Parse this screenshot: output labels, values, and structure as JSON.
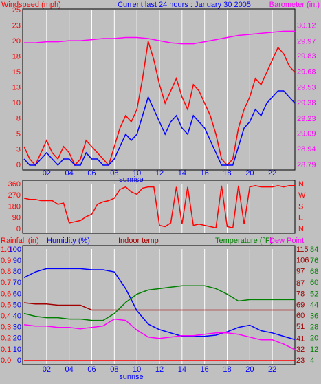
{
  "chart_data": [
    {
      "type": "line",
      "title": "Current last 24 hours : January 30 2005",
      "ylabel": "Windspeed (mph)",
      "y2label": "Barometer (in.)",
      "annotations": [
        {
          "text": "sunrise",
          "x": 9.5
        }
      ],
      "x": [
        0,
        0.5,
        1,
        1.5,
        2,
        2.5,
        3,
        3.5,
        4,
        4.5,
        5,
        5.5,
        6,
        6.5,
        7,
        7.5,
        8,
        8.5,
        9,
        9.5,
        10,
        10.5,
        11,
        11.5,
        12,
        12.5,
        13,
        13.5,
        14,
        14.5,
        15,
        15.5,
        16,
        16.5,
        17,
        17.5,
        18,
        18.5,
        19,
        19.5,
        20,
        20.5,
        21,
        21.5,
        22,
        22.5,
        23,
        23.5,
        24
      ],
      "xlim": [
        0,
        24
      ],
      "xticks": [
        {
          "value": 2,
          "label": "02"
        },
        {
          "value": 4,
          "label": "04"
        },
        {
          "value": 6,
          "label": "06"
        },
        {
          "value": 8,
          "label": "08"
        },
        {
          "value": 10,
          "label": "10"
        },
        {
          "value": 12,
          "label": "12"
        },
        {
          "value": 14,
          "label": "14"
        },
        {
          "value": 16,
          "label": "16"
        },
        {
          "value": 18,
          "label": "18"
        },
        {
          "value": 20,
          "label": "20"
        },
        {
          "value": 22,
          "label": "22"
        }
      ],
      "ylim": [
        0,
        25
      ],
      "yticks": [
        0,
        {
          "value": 2.5,
          "label": "3"
        },
        5,
        {
          "value": 7.5,
          "label": "8"
        },
        10,
        {
          "value": 12.5,
          "label": "13"
        },
        15,
        {
          "value": 17.5,
          "label": "18"
        },
        20,
        {
          "value": 22.5,
          "label": "23"
        },
        25
      ],
      "y2lim": [
        28.79,
        30.27
      ],
      "y2ticks": [
        28.79,
        28.94,
        29.09,
        29.23,
        29.38,
        29.53,
        29.68,
        29.83,
        29.97,
        30.12
      ],
      "grid": "x",
      "series": [
        {
          "color": "#ff0000",
          "values": [
            3,
            1,
            0,
            2,
            4,
            2,
            1,
            3,
            2,
            0,
            1,
            4,
            3,
            2,
            1,
            0,
            3,
            6,
            8,
            7,
            9,
            14,
            20,
            17,
            13,
            10,
            12,
            14,
            11,
            9,
            13,
            12,
            10,
            8,
            5,
            1,
            0,
            1,
            6,
            9,
            11,
            14,
            13,
            15,
            17,
            19,
            18,
            16,
            15
          ]
        },
        {
          "color": "#0000ff",
          "values": [
            1,
            0,
            0,
            1,
            2,
            1,
            0,
            1,
            1,
            0,
            0,
            2,
            1,
            1,
            0,
            0,
            1,
            3,
            5,
            4,
            5,
            8,
            11,
            9,
            7,
            5,
            7,
            8,
            6,
            5,
            8,
            7,
            6,
            4,
            2,
            0,
            0,
            0,
            3,
            6,
            7,
            9,
            8,
            10,
            11,
            12,
            12,
            11,
            10
          ]
        },
        {
          "color": "#ff00ff",
          "axis": "y2",
          "x": [
            0,
            1,
            2,
            3,
            4,
            5,
            6,
            7,
            8,
            9,
            10,
            11,
            12,
            13,
            14,
            15,
            16,
            17,
            18,
            19,
            20,
            21,
            22,
            23,
            24
          ],
          "values": [
            29.96,
            29.96,
            29.97,
            29.97,
            29.98,
            29.98,
            29.99,
            30.0,
            30.0,
            30.01,
            30.01,
            30.0,
            29.98,
            29.96,
            29.95,
            29.95,
            29.97,
            29.99,
            30.01,
            30.03,
            30.04,
            30.05,
            30.06,
            30.07,
            30.07
          ]
        }
      ]
    },
    {
      "type": "line",
      "x": [
        0,
        0.5,
        1,
        1.5,
        2,
        2.5,
        3,
        3.5,
        4,
        4.5,
        5,
        5.5,
        6,
        6.5,
        7,
        7.5,
        8,
        8.5,
        9,
        9.5,
        10,
        10.5,
        11,
        11.5,
        12,
        12.5,
        13,
        13.5,
        14,
        14.5,
        15,
        15.5,
        16,
        16.5,
        17,
        17.5,
        18,
        18.5,
        19,
        19.5,
        20,
        20.5,
        21,
        21.5,
        22,
        22.5,
        23,
        23.5,
        24
      ],
      "xlim": [
        0,
        24
      ],
      "xticks": [
        2,
        4,
        6,
        8,
        10,
        12,
        14,
        16,
        18,
        20,
        22
      ],
      "show_xtick_labels": false,
      "ylim": [
        0,
        360
      ],
      "yticks": [
        0,
        90,
        180,
        270,
        360
      ],
      "y_right_labels": [
        "N",
        "E",
        "S",
        "W",
        "N"
      ],
      "grid": "x",
      "series": [
        {
          "color": "#ff0000",
          "values": [
            250,
            240,
            240,
            230,
            230,
            230,
            200,
            210,
            50,
            60,
            70,
            100,
            120,
            200,
            220,
            230,
            250,
            320,
            340,
            300,
            280,
            330,
            340,
            340,
            30,
            20,
            50,
            340,
            40,
            340,
            30,
            40,
            30,
            20,
            10,
            350,
            20,
            10,
            350,
            40,
            340,
            350,
            340,
            340,
            340,
            350,
            340,
            350,
            350
          ]
        }
      ]
    },
    {
      "type": "line",
      "annotations": [
        {
          "text": "sunrise",
          "x": 9.5
        }
      ],
      "x": [
        0,
        1,
        2,
        3,
        4,
        5,
        6,
        7,
        8,
        9,
        10,
        11,
        12,
        13,
        14,
        15,
        16,
        17,
        18,
        19,
        20,
        21,
        22,
        23,
        24
      ],
      "xlim": [
        0,
        24
      ],
      "xticks": [
        {
          "value": 2,
          "label": "02"
        },
        {
          "value": 4,
          "label": "04"
        },
        {
          "value": 6,
          "label": "06"
        },
        {
          "value": 8,
          "label": "08"
        },
        {
          "value": 10,
          "label": "10"
        },
        {
          "value": 12,
          "label": "12"
        },
        {
          "value": 14,
          "label": "14"
        },
        {
          "value": 16,
          "label": "16"
        },
        {
          "value": 18,
          "label": "18"
        },
        {
          "value": 20,
          "label": "20"
        },
        {
          "value": 22,
          "label": "22"
        }
      ],
      "grid": "x",
      "axes": [
        {
          "label": "Rainfall (in)",
          "color": "#ff0000",
          "side": "left",
          "lim": [
            0,
            1
          ],
          "ticks": [
            {
              "value": 0,
              "label": "0.0"
            },
            {
              "value": 0.1,
              "label": "0.1"
            },
            {
              "value": 0.2,
              "label": "0.2"
            },
            {
              "value": 0.3,
              "label": "0.3"
            },
            {
              "value": 0.4,
              "label": "0.4"
            },
            {
              "value": 0.5,
              "label": "0.5"
            },
            {
              "value": 0.6,
              "label": "0.6"
            },
            {
              "value": 0.7,
              "label": "0.7"
            },
            {
              "value": 0.8,
              "label": "0.8"
            },
            {
              "value": 0.9,
              "label": "0.9"
            },
            {
              "value": 1,
              "label": "1.0"
            }
          ]
        },
        {
          "label": "Humidity (%)",
          "color": "#0000ff",
          "side": "left",
          "lim": [
            0,
            100
          ],
          "ticks": [
            0,
            10,
            20,
            30,
            40,
            50,
            60,
            70,
            80,
            90,
            100
          ]
        },
        {
          "label": "Indoor temp",
          "color": "#a00000",
          "side": "right",
          "lim": [
            23,
            115
          ],
          "ticks": [
            23,
            32,
            41,
            51,
            60,
            69,
            78,
            87,
            97,
            106,
            115
          ]
        },
        {
          "label": "Temperature (°F)",
          "color": "#008000",
          "side": "right",
          "lim": [
            4,
            84
          ],
          "ticks": [
            4,
            12,
            20,
            28,
            36,
            44,
            52,
            60,
            68,
            76,
            84
          ]
        }
      ],
      "series": [
        {
          "axis": 0,
          "color": "#ff0000",
          "values": [
            0,
            0,
            0,
            0,
            0,
            0,
            0,
            0,
            0,
            0,
            0,
            0,
            0,
            0,
            0,
            0,
            0,
            0,
            0,
            0,
            0,
            0,
            0,
            0,
            0
          ]
        },
        {
          "axis": 2,
          "color": "#a00000",
          "values": [
            71,
            70,
            70,
            69,
            69,
            69,
            65,
            65,
            65,
            65,
            65,
            65,
            65,
            65,
            65,
            65,
            65,
            65,
            65,
            65,
            65,
            65,
            65,
            65,
            65
          ]
        },
        {
          "axis": 1,
          "color": "#0000ff",
          "values": [
            75,
            80,
            83,
            83,
            83,
            83,
            82,
            82,
            80,
            65,
            45,
            33,
            28,
            25,
            22,
            22,
            22,
            23,
            26,
            30,
            32,
            27,
            25,
            22,
            19
          ]
        },
        {
          "axis": 3,
          "color": "#008000",
          "values": [
            38,
            36,
            35,
            35,
            34,
            34,
            33,
            33,
            38,
            46,
            52,
            55,
            56,
            57,
            58,
            58,
            58,
            56,
            52,
            47,
            48,
            48,
            48,
            48,
            48
          ]
        },
        {
          "axis": 3,
          "name": "Dew Point",
          "color": "#ff00ff",
          "values": [
            30,
            29,
            29,
            28,
            28,
            27,
            28,
            29,
            34,
            33,
            26,
            21,
            20,
            21,
            22,
            22,
            23,
            24,
            24,
            23,
            21,
            19,
            19,
            16,
            12
          ]
        }
      ]
    }
  ]
}
